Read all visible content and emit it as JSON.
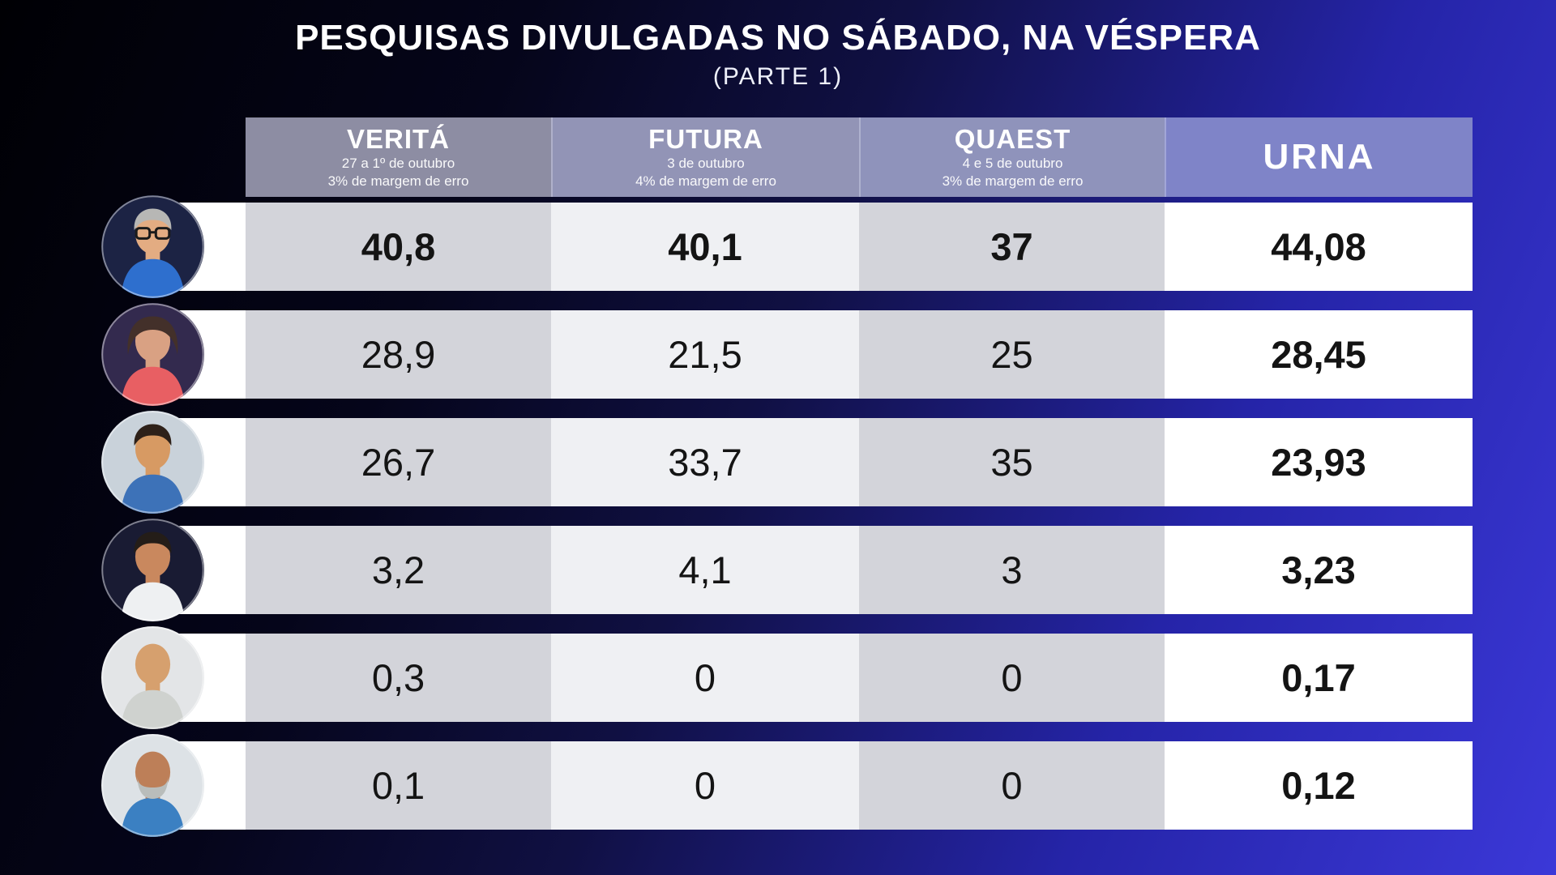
{
  "title": "PESQUISAS DIVULGADAS NO SÁBADO, NA VÉSPERA",
  "subtitle": "(PARTE 1)",
  "colors": {
    "background_start": "#000004",
    "background_end": "#3b38d8",
    "header_verita_bg": "#8d8da3",
    "header_futura_bg": "#9294b6",
    "header_quaest_bg": "#8f93bb",
    "header_urna_bg": "#7f84c8",
    "cell_gray": "#d3d4da",
    "cell_light": "#eff0f3",
    "cell_white": "#ffffff",
    "value_text": "#141414",
    "header_text": "#ffffff"
  },
  "table": {
    "columns": [
      {
        "id": "verita",
        "label": "VERITÁ",
        "line1": "27 a 1º de outubro",
        "line2": "3% de margem de erro"
      },
      {
        "id": "futura",
        "label": "FUTURA",
        "line1": "3 de outubro",
        "line2": "4% de margem de erro"
      },
      {
        "id": "quaest",
        "label": "QUAEST",
        "line1": "4 e 5 de outubro",
        "line2": "3% de margem de erro"
      },
      {
        "id": "urna",
        "label": "URNA",
        "line1": "",
        "line2": ""
      }
    ],
    "rows": [
      {
        "verita": "40,8",
        "futura": "40,1",
        "quaest": "37",
        "urna": "44,08",
        "bold": true,
        "avatar": {
          "bg": "#1c2344",
          "skin": "#e3ac82",
          "shirt": "#2e6fce",
          "hair": "#b7b7b5",
          "glasses": true
        }
      },
      {
        "verita": "28,9",
        "futura": "21,5",
        "quaest": "25",
        "urna": "28,45",
        "bold": false,
        "avatar": {
          "bg": "#332a4e",
          "skin": "#d9a183",
          "shirt": "#e85f63",
          "hair": "#43302a",
          "female": true
        }
      },
      {
        "verita": "26,7",
        "futura": "33,7",
        "quaest": "35",
        "urna": "23,93",
        "bold": false,
        "avatar": {
          "bg": "#c9d2da",
          "skin": "#d79a63",
          "shirt": "#3d72b8",
          "hair": "#2e2119"
        }
      },
      {
        "verita": "3,2",
        "futura": "4,1",
        "quaest": "3",
        "urna": "3,23",
        "bold": false,
        "avatar": {
          "bg": "#191b33",
          "skin": "#c9885e",
          "shirt": "#eef0f2",
          "hair": "#241d18"
        }
      },
      {
        "verita": "0,3",
        "futura": "0",
        "quaest": "0",
        "urna": "0,17",
        "bold": false,
        "avatar": {
          "bg": "#e3e5e7",
          "skin": "#d6a06e",
          "shirt": "#cfd2cf",
          "bald": true
        }
      },
      {
        "verita": "0,1",
        "futura": "0",
        "quaest": "0",
        "urna": "0,12",
        "bold": false,
        "avatar": {
          "bg": "#dde2e6",
          "skin": "#bd7f58",
          "shirt": "#3b80c2",
          "bald": true,
          "beard": true,
          "beard_color": "#b9bdbb"
        }
      }
    ]
  },
  "chart_data": {
    "type": "table",
    "title": "PESQUISAS DIVULGADAS NO SÁBADO, NA VÉSPERA",
    "subtitle": "(PARTE 1)",
    "columns": [
      "VERITÁ (27 a 1º de outubro, 3% de margem de erro)",
      "FUTURA (3 de outubro, 4% de margem de erro)",
      "QUAEST (4 e 5 de outubro, 3% de margem de erro)",
      "URNA"
    ],
    "rows": [
      {
        "candidate": "row-1",
        "values": [
          40.8,
          40.1,
          37,
          44.08
        ]
      },
      {
        "candidate": "row-2",
        "values": [
          28.9,
          21.5,
          25,
          28.45
        ]
      },
      {
        "candidate": "row-3",
        "values": [
          26.7,
          33.7,
          35,
          23.93
        ]
      },
      {
        "candidate": "row-4",
        "values": [
          3.2,
          4.1,
          3,
          3.23
        ]
      },
      {
        "candidate": "row-5",
        "values": [
          0.3,
          0,
          0,
          0.17
        ]
      },
      {
        "candidate": "row-6",
        "values": [
          0.1,
          0,
          0,
          0.12
        ]
      }
    ]
  }
}
